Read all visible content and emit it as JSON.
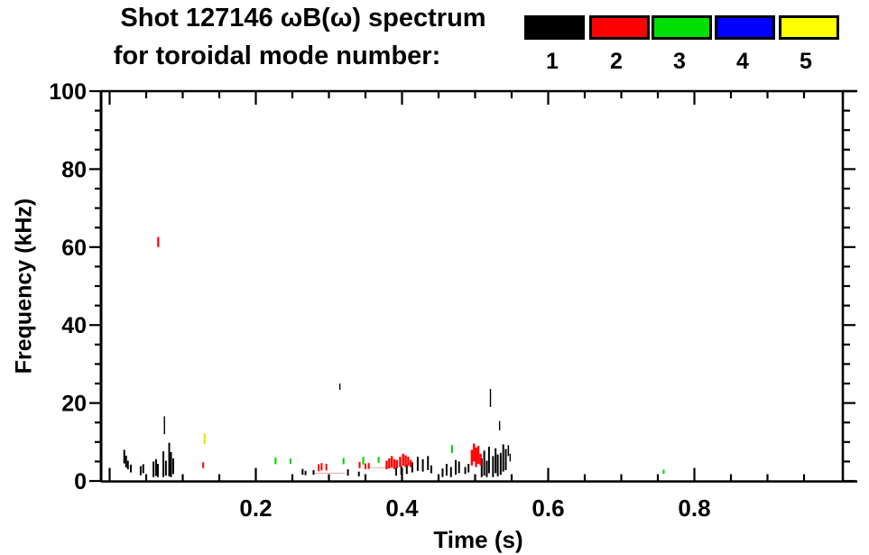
{
  "title": {
    "line1": "Shot 127146 ωB(ω) spectrum",
    "line2": "for toroidal mode number:"
  },
  "legend": {
    "position": "top-right",
    "items": [
      {
        "label": "1",
        "color": "#000000"
      },
      {
        "label": "2",
        "color": "#ff0000"
      },
      {
        "label": "3",
        "color": "#00e000"
      },
      {
        "label": "4",
        "color": "#0000ff"
      },
      {
        "label": "5",
        "color": "#ffff00"
      }
    ]
  },
  "axes": {
    "x_ticks": [
      {
        "label": "0.2",
        "value": 0.2
      },
      {
        "label": "0.4",
        "value": 0.4
      },
      {
        "label": "0.6",
        "value": 0.6
      },
      {
        "label": "0.8",
        "value": 0.8
      }
    ],
    "y_ticks": [
      {
        "label": "0",
        "value": 0
      },
      {
        "label": "20",
        "value": 20
      },
      {
        "label": "40",
        "value": 40
      },
      {
        "label": "60",
        "value": 60
      },
      {
        "label": "80",
        "value": 80
      },
      {
        "label": "100",
        "value": 100
      }
    ]
  },
  "chart_data": {
    "type": "scatter",
    "title": "Shot 127146 ωB(ω) spectrum for toroidal mode number: 1 2 3 4 5",
    "xlabel": "Time (s)",
    "ylabel": "Frequency (kHz)",
    "xlim": [
      -0.01,
      1.0
    ],
    "ylim": [
      0,
      100
    ],
    "x_major_step": 0.2,
    "x_minor_step": 0.05,
    "y_major_step": 20,
    "y_minor_step": 5,
    "grid": false,
    "legend_position": "top-right",
    "series": [
      {
        "name": "n=1",
        "color": "#000000",
        "spikes": [
          [
            0.02,
            4.5,
            8.0
          ],
          [
            0.0225,
            3.5,
            6.5
          ],
          [
            0.025,
            3.0,
            5.2
          ],
          [
            0.029,
            2.2,
            4.2
          ],
          [
            0.0425,
            1.5,
            3.8
          ],
          [
            0.046,
            2.0,
            4.3
          ],
          [
            0.06,
            1.0,
            5.0
          ],
          [
            0.0635,
            1.3,
            5.6
          ],
          [
            0.066,
            1.0,
            4.4
          ],
          [
            0.0735,
            1.0,
            7.6
          ],
          [
            0.075,
            12.0,
            16.6,
            1.4
          ],
          [
            0.077,
            1.4,
            5.2
          ],
          [
            0.0815,
            1.2,
            9.8
          ],
          [
            0.084,
            1.0,
            7.4
          ],
          [
            0.087,
            1.8,
            5.8
          ],
          [
            0.264,
            1.6,
            3.1
          ],
          [
            0.268,
            1.5,
            2.6
          ],
          [
            0.279,
            1.6,
            2.8
          ],
          [
            0.315,
            23.4,
            25.0,
            1.4
          ],
          [
            0.326,
            1.4,
            3.0
          ],
          [
            0.341,
            1.2,
            2.4
          ],
          [
            0.392,
            1.4,
            3.4
          ],
          [
            0.399,
            1.6,
            3.8
          ],
          [
            0.4065,
            1.8,
            4.2
          ],
          [
            0.414,
            2.2,
            4.8
          ],
          [
            0.4215,
            2.6,
            6.2
          ],
          [
            0.4285,
            2.4,
            5.6
          ],
          [
            0.4355,
            2.8,
            6.4
          ],
          [
            0.44,
            2.0,
            4.0
          ],
          [
            0.4555,
            1.0,
            3.2
          ],
          [
            0.461,
            1.4,
            4.4
          ],
          [
            0.467,
            1.0,
            3.6
          ],
          [
            0.4735,
            1.6,
            5.4
          ],
          [
            0.478,
            2.0,
            5.0
          ],
          [
            0.4865,
            1.8,
            3.6
          ],
          [
            0.491,
            2.2,
            4.4
          ],
          [
            0.509,
            1.0,
            5.8
          ],
          [
            0.5125,
            1.4,
            7.8
          ],
          [
            0.516,
            1.0,
            5.2
          ],
          [
            0.519,
            2.0,
            8.8
          ],
          [
            0.521,
            19.0,
            23.6,
            1.4
          ],
          [
            0.5245,
            1.0,
            6.4
          ],
          [
            0.528,
            2.0,
            8.4
          ],
          [
            0.531,
            1.2,
            6.8
          ],
          [
            0.5335,
            13.0,
            15.4,
            1.4
          ],
          [
            0.535,
            1.6,
            7.2
          ],
          [
            0.5385,
            2.4,
            9.4
          ],
          [
            0.542,
            2.8,
            8.2
          ],
          [
            0.5455,
            6.4,
            9.2,
            1.6
          ],
          [
            0.548,
            5.0,
            7.0,
            1.4
          ]
        ]
      },
      {
        "name": "n=2",
        "color": "#ff0000",
        "spikes": [
          [
            0.0665,
            60.0,
            62.6,
            2.2
          ],
          [
            0.128,
            3.3,
            4.8
          ],
          [
            0.286,
            2.5,
            4.3
          ],
          [
            0.29,
            2.7,
            4.6
          ],
          [
            0.2965,
            2.7,
            4.4
          ],
          [
            0.342,
            3.3,
            4.9
          ],
          [
            0.35,
            3.0,
            4.5
          ],
          [
            0.3545,
            3.1,
            4.6
          ],
          [
            0.379,
            3.0,
            5.2,
            2.4
          ],
          [
            0.3825,
            3.2,
            5.8,
            2.4
          ],
          [
            0.386,
            3.4,
            6.4,
            2.4
          ],
          [
            0.3895,
            3.1,
            5.6,
            2.4
          ],
          [
            0.393,
            3.3,
            5.4,
            2.4
          ],
          [
            0.3975,
            3.6,
            6.2,
            2.4
          ],
          [
            0.4015,
            3.9,
            7.0,
            2.4
          ],
          [
            0.405,
            3.6,
            6.6,
            2.4
          ],
          [
            0.4085,
            3.9,
            6.2,
            2.4
          ],
          [
            0.412,
            3.6,
            5.4,
            2.4
          ],
          [
            0.4955,
            4.0,
            8.0,
            2.4
          ],
          [
            0.4985,
            5.0,
            9.6,
            2.4
          ],
          [
            0.5015,
            3.6,
            8.6,
            2.4
          ],
          [
            0.5045,
            4.4,
            9.0,
            2.4
          ],
          [
            0.5075,
            4.0,
            7.0,
            2.4
          ]
        ]
      },
      {
        "name": "n=3",
        "color": "#00d000",
        "spikes": [
          [
            0.227,
            4.3,
            6.0
          ],
          [
            0.2475,
            4.4,
            5.8
          ],
          [
            0.32,
            4.3,
            5.9
          ],
          [
            0.347,
            4.2,
            6.2
          ],
          [
            0.368,
            4.7,
            6.2
          ],
          [
            0.4685,
            7.2,
            9.2
          ],
          [
            0.758,
            1.8,
            2.9
          ]
        ]
      },
      {
        "name": "n=4",
        "color": "#0000ff",
        "spikes": []
      },
      {
        "name": "n=5",
        "color": "#f5e000",
        "spikes": [
          [
            0.13,
            9.5,
            12.2,
            2.2
          ]
        ]
      }
    ],
    "traces": [
      {
        "t0": 0.278,
        "t1": 0.322,
        "f": 2.0,
        "color": "#f0b4b4"
      },
      {
        "t0": 0.352,
        "t1": 0.381,
        "f": 3.4,
        "color": "#f0b4b4"
      }
    ]
  }
}
